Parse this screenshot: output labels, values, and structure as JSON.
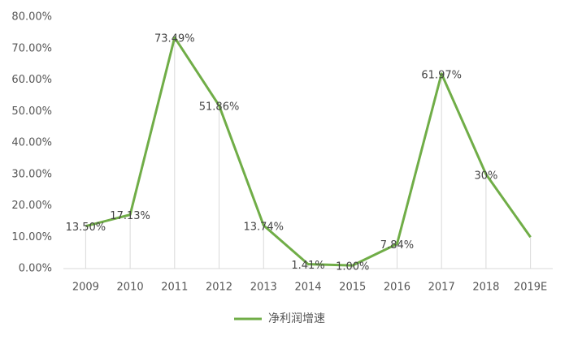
{
  "chart_data": {
    "type": "line",
    "categories": [
      "2009",
      "2010",
      "2011",
      "2012",
      "2013",
      "2014",
      "2015",
      "2016",
      "2017",
      "2018",
      "2019E"
    ],
    "series": [
      {
        "name": "净利润增速",
        "color": "#70ad47",
        "values": [
          13.5,
          17.13,
          73.49,
          51.86,
          13.74,
          1.41,
          1.0,
          7.84,
          61.97,
          30,
          10
        ],
        "value_labels": [
          "13.50%",
          "17.13%",
          "73.49%",
          "51.86%",
          "13.74%",
          "1.41%",
          "1.00%",
          "7.84%",
          "61.97%",
          "30%",
          null
        ]
      }
    ],
    "ylim": [
      0,
      80
    ],
    "yticks": [
      {
        "value": 0,
        "label": "0.00%"
      },
      {
        "value": 10,
        "label": "10.00%"
      },
      {
        "value": 20,
        "label": "20.00%"
      },
      {
        "value": 30,
        "label": "30.00%"
      },
      {
        "value": 40,
        "label": "40.00%"
      },
      {
        "value": 50,
        "label": "50.00%"
      },
      {
        "value": 60,
        "label": "60.00%"
      },
      {
        "value": 70,
        "label": "70.00%"
      },
      {
        "value": 80,
        "label": "80.00%"
      }
    ],
    "drop_lines": true,
    "legend": "bottom"
  }
}
